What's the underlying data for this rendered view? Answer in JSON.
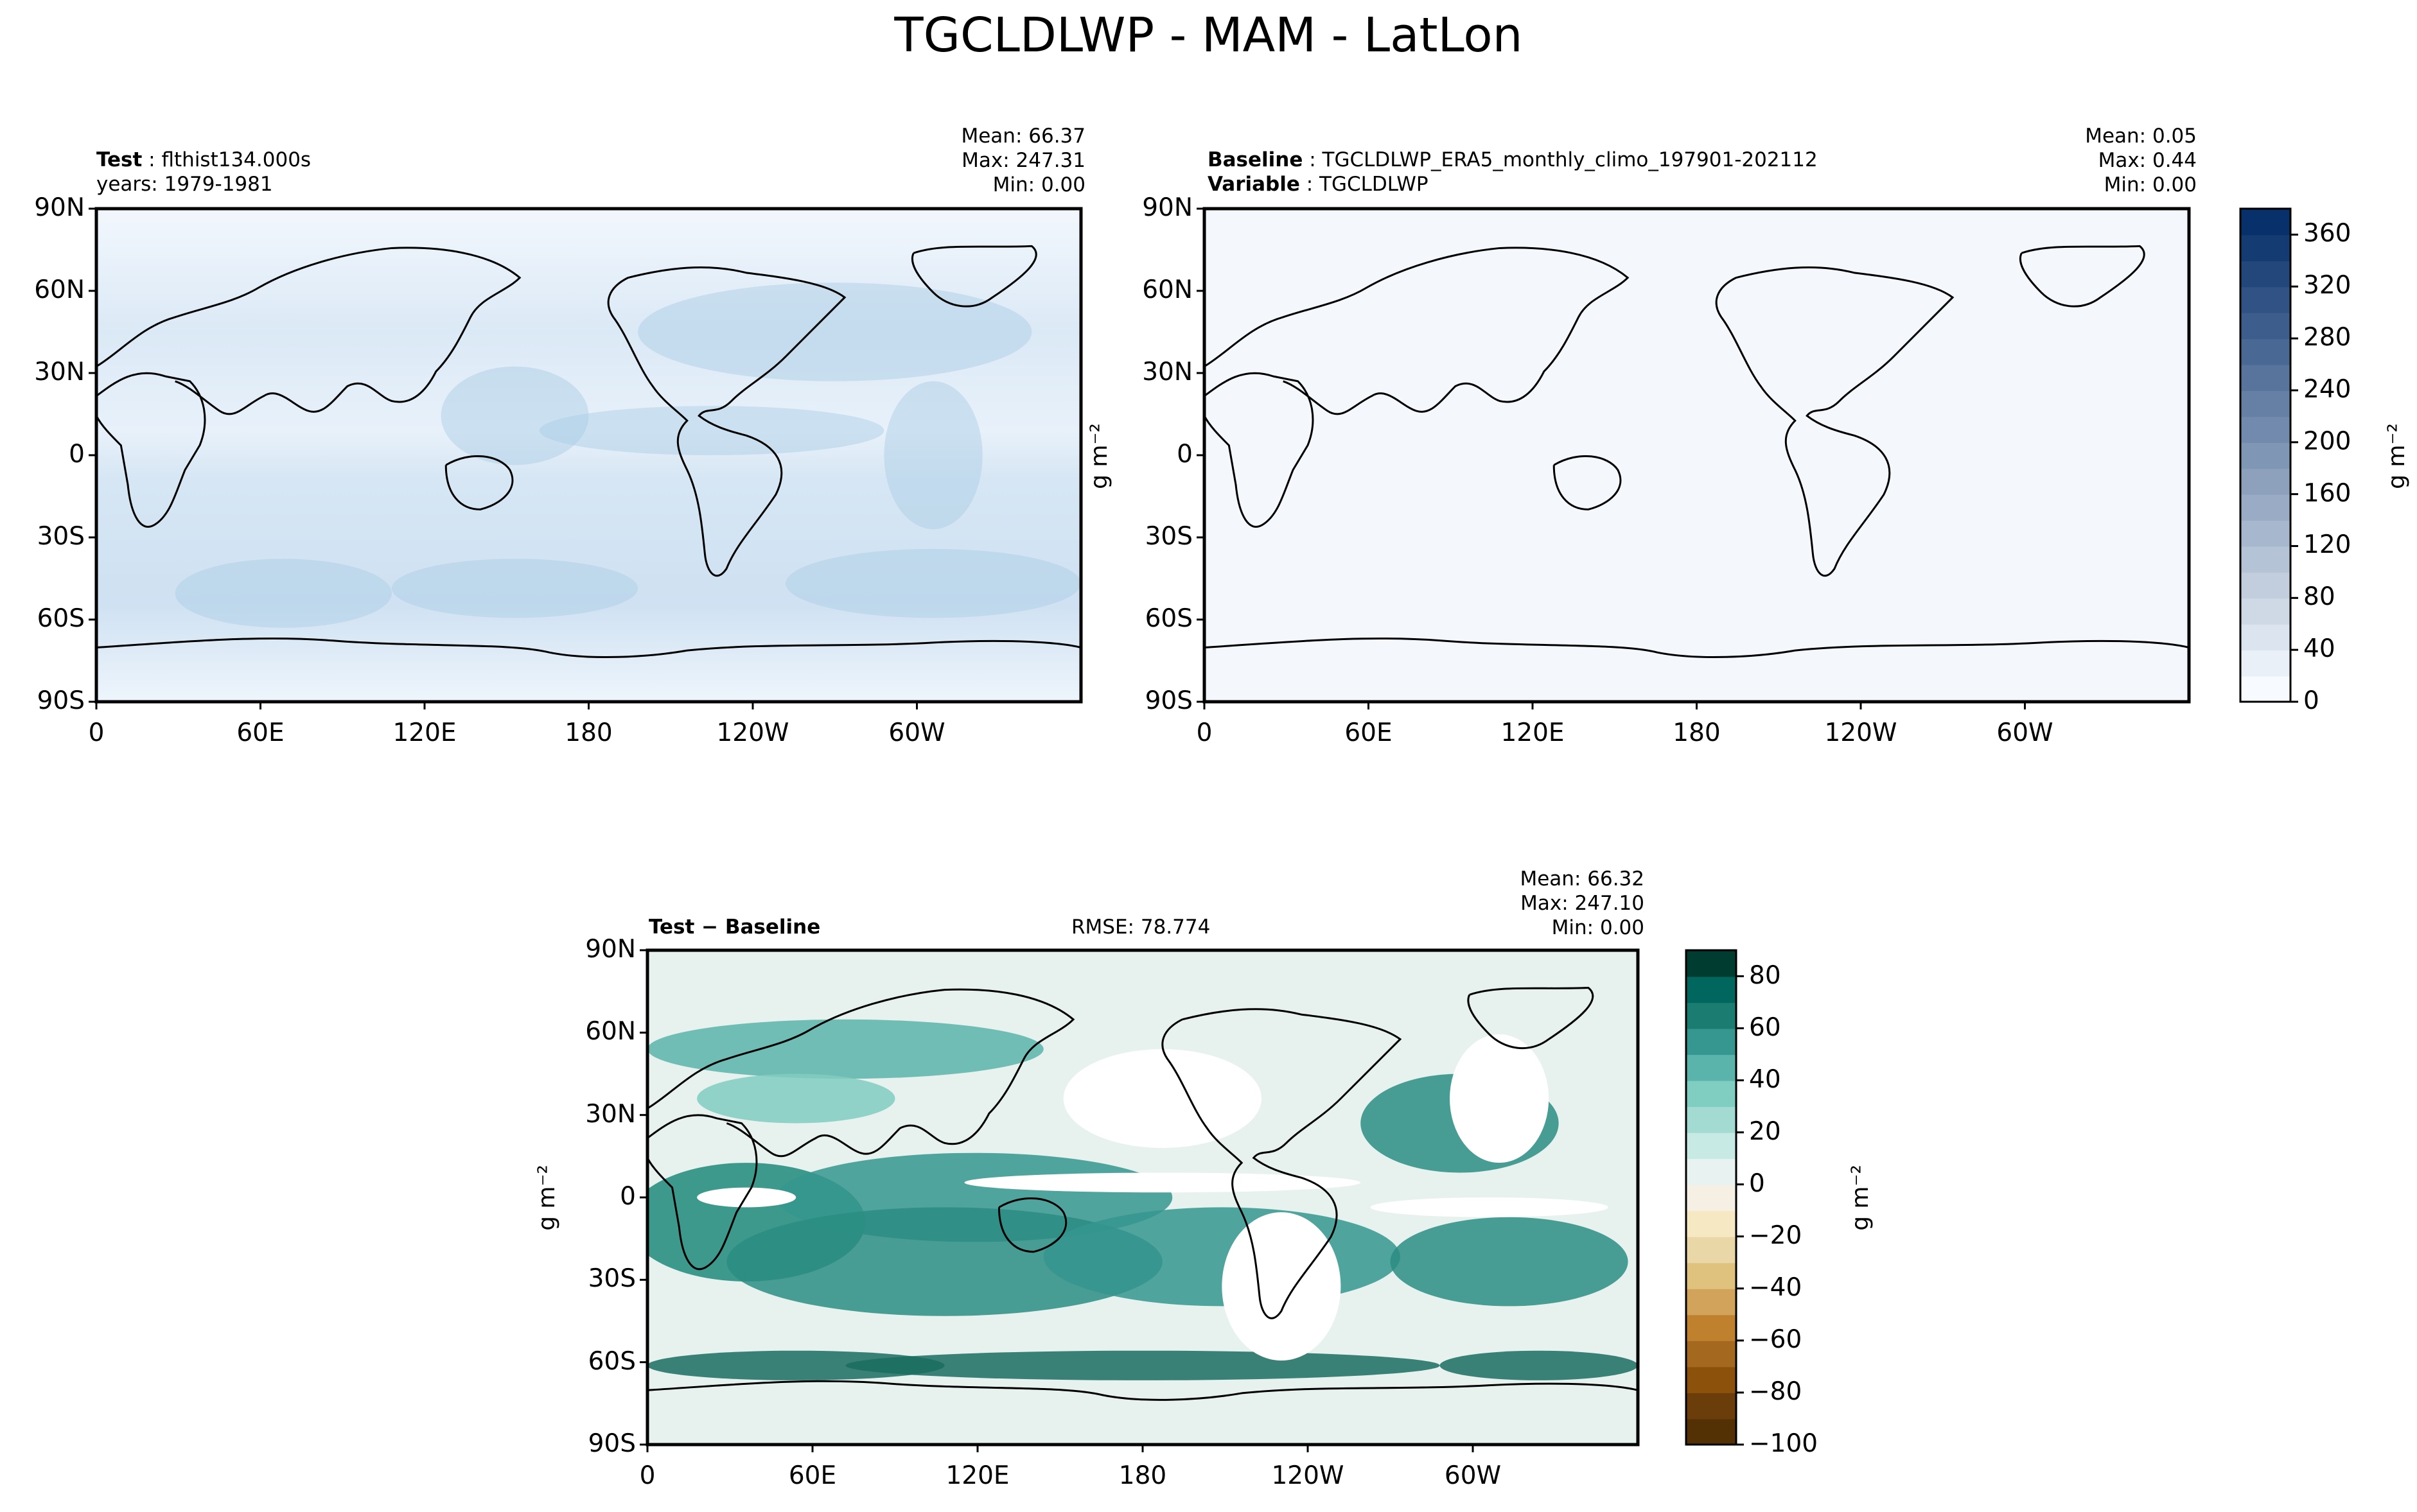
{
  "title": "TGCLDLWP - MAM - LatLon",
  "axes": {
    "lat_ticks": [
      "90N",
      "60N",
      "30N",
      "0",
      "30S",
      "60S",
      "90S"
    ],
    "lon_ticks": [
      "0",
      "60E",
      "120E",
      "180",
      "120W",
      "60W"
    ]
  },
  "units_label": "g m⁻²",
  "colors": {
    "seq_light": "#f4f9fe",
    "seq_dark": "#08306b",
    "div_pos": "#003c30",
    "div_neg": "#543005",
    "frame": "#000000"
  },
  "chart_data": [
    {
      "type": "heatmap",
      "panel": "test",
      "label": "Test",
      "name": "flthist134.000s",
      "years": "years: 1979-1981",
      "stats": {
        "mean": "Mean: 66.37",
        "max": "Max: 247.31",
        "min": "Min:  0.00"
      },
      "xlabel": "",
      "ylabel": "",
      "xlim": [
        0,
        360
      ],
      "ylim": [
        -90,
        90
      ],
      "colormap": "Blues",
      "colorbar_ticks": [
        "0",
        "40",
        "80",
        "120",
        "160",
        "200",
        "240",
        "280",
        "320",
        "360"
      ]
    },
    {
      "type": "heatmap",
      "panel": "baseline",
      "label": "Baseline",
      "name": "TGCLDLWP_ERA5_monthly_climo_197901-202112",
      "variable_label": "Variable",
      "variable": "TGCLDLWP",
      "stats": {
        "mean": "Mean:  0.05",
        "max": "Max:  0.44",
        "min": "Min:  0.00"
      },
      "xlim": [
        0,
        360
      ],
      "ylim": [
        -90,
        90
      ],
      "colormap": "Blues",
      "colorbar_ticks": [
        "0",
        "40",
        "80",
        "120",
        "160",
        "200",
        "240",
        "280",
        "320",
        "360"
      ],
      "colorbar_range": [
        0,
        380
      ]
    },
    {
      "type": "heatmap",
      "panel": "difference",
      "label": "Test − Baseline",
      "rmse": "RMSE: 78.774",
      "stats": {
        "mean": "Mean: 66.32",
        "max": "Max: 247.10",
        "min": "Min:  0.00"
      },
      "xlim": [
        0,
        360
      ],
      "ylim": [
        -90,
        90
      ],
      "colormap": "BrBG",
      "colorbar_ticks": [
        "80",
        "60",
        "40",
        "20",
        "0",
        "−20",
        "−40",
        "−60",
        "−80",
        "−100"
      ],
      "colorbar_range": [
        -100,
        90
      ]
    }
  ]
}
